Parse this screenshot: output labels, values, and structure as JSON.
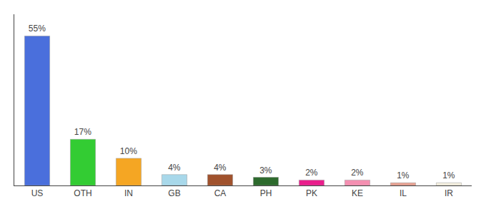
{
  "chart_data": {
    "type": "bar",
    "categories": [
      "US",
      "OTH",
      "IN",
      "GB",
      "CA",
      "PH",
      "PK",
      "KE",
      "IL",
      "IR"
    ],
    "values": [
      55,
      17,
      10,
      4,
      4,
      3,
      2,
      2,
      1,
      1
    ],
    "value_labels": [
      "55%",
      "17%",
      "10%",
      "4%",
      "4%",
      "3%",
      "2%",
      "2%",
      "1%",
      "1%"
    ],
    "colors": [
      "#4a6fdc",
      "#33cc33",
      "#f5a623",
      "#a8d8ea",
      "#a0522d",
      "#2d6a2d",
      "#e91e8c",
      "#f48fb1",
      "#e8a090",
      "#f5f0e0"
    ],
    "ylim": [
      0,
      63
    ],
    "data_labels": true,
    "tick_labels": "x",
    "grid": false
  }
}
